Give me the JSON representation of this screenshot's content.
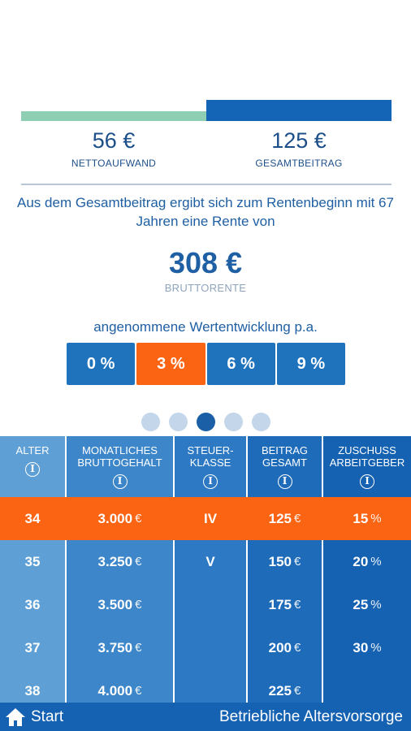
{
  "summary": {
    "net_amount": "56 €",
    "net_label": "NETTOAUFWAND",
    "total_amount": "125 €",
    "total_label": "GESAMTBEITRAG"
  },
  "description": "Aus dem Gesamtbeitrag ergibt sich zum Rentenbeginn mit 67 Jahren eine Rente von",
  "pension": {
    "amount": "308 €",
    "label": "BRUTTORENTE"
  },
  "growth": {
    "title": "angenommene Wertentwicklung p.a.",
    "options": [
      "0 %",
      "3 %",
      "6 %",
      "9 %"
    ],
    "selected": "3 %"
  },
  "pager": {
    "pages": 5,
    "current": 3
  },
  "table": {
    "headers": [
      "ALTER",
      "MONATLICHES BRUTTOGEHALT",
      "STEUER-KLASSE",
      "BEITRAG GESAMT",
      "ZUSCHUSS ARBEITGEBER"
    ],
    "info_glyph": "i",
    "rows": [
      {
        "age": "34",
        "salary": "3.000",
        "class": "IV",
        "contribution": "125",
        "subsidy": "15",
        "highlight": true
      },
      {
        "age": "35",
        "salary": "3.250",
        "class": "V",
        "contribution": "150",
        "subsidy": "20",
        "highlight": false
      },
      {
        "age": "36",
        "salary": "3.500",
        "class": "",
        "contribution": "175",
        "subsidy": "25",
        "highlight": false
      },
      {
        "age": "37",
        "salary": "3.750",
        "class": "",
        "contribution": "200",
        "subsidy": "30",
        "highlight": false
      },
      {
        "age": "38",
        "salary": "4.000",
        "class": "",
        "contribution": "225",
        "subsidy": "",
        "highlight": false
      }
    ],
    "currency": "€",
    "percent": "%"
  },
  "footer": {
    "start_label": "Start",
    "title": "Betriebliche Altersvorsorge"
  },
  "colors": {
    "accent": "#fb6413",
    "primary": "#1562b2",
    "net_bar": "#8ecfb4"
  }
}
